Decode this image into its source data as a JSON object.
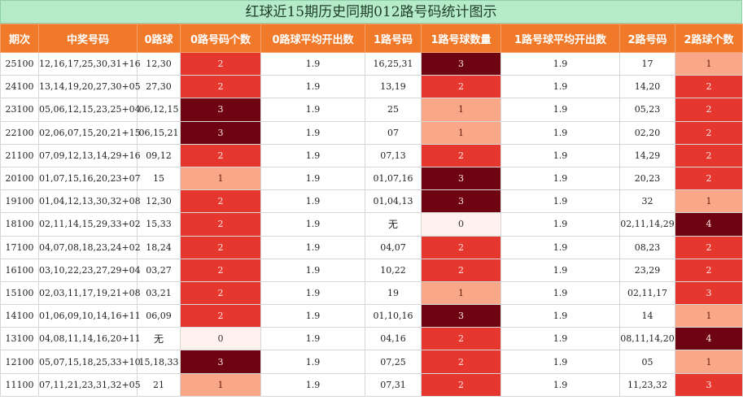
{
  "title": "红球近15期历史同期012路号码统计图示",
  "headers": [
    "期次",
    "中奖号码",
    "0路球",
    "0路号码个数",
    "0路球平均开出数",
    "1路号码",
    "1路号球数量",
    "1路号球平均开出数",
    "2路号码",
    "2路球个数"
  ],
  "rows": [
    {
      "issue": "25100",
      "numbers": "12,16,17,25,30,31+16",
      "r0": "12,30",
      "r0_count": "2",
      "r0_avg": "1.9",
      "r1": "16,25,31",
      "r1_count": "3",
      "r1_avg": "1.9",
      "r2": "17",
      "r2_count": "1"
    },
    {
      "issue": "24100",
      "numbers": "13,14,19,20,27,30+05",
      "r0": "27,30",
      "r0_count": "2",
      "r0_avg": "1.9",
      "r1": "13,19",
      "r1_count": "2",
      "r1_avg": "1.9",
      "r2": "14,20",
      "r2_count": "2"
    },
    {
      "issue": "23100",
      "numbers": "05,06,12,15,23,25+04",
      "r0": "06,12,15",
      "r0_count": "3",
      "r0_avg": "1.9",
      "r1": "25",
      "r1_count": "1",
      "r1_avg": "1.9",
      "r2": "05,23",
      "r2_count": "2"
    },
    {
      "issue": "22100",
      "numbers": "02,06,07,15,20,21+15",
      "r0": "06,15,21",
      "r0_count": "3",
      "r0_avg": "1.9",
      "r1": "07",
      "r1_count": "1",
      "r1_avg": "1.9",
      "r2": "02,20",
      "r2_count": "2"
    },
    {
      "issue": "21100",
      "numbers": "07,09,12,13,14,29+16",
      "r0": "09,12",
      "r0_count": "2",
      "r0_avg": "1.9",
      "r1": "07,13",
      "r1_count": "2",
      "r1_avg": "1.9",
      "r2": "14,29",
      "r2_count": "2"
    },
    {
      "issue": "20100",
      "numbers": "01,07,15,16,20,23+07",
      "r0": "15",
      "r0_count": "1",
      "r0_avg": "1.9",
      "r1": "01,07,16",
      "r1_count": "3",
      "r1_avg": "1.9",
      "r2": "20,23",
      "r2_count": "2"
    },
    {
      "issue": "19100",
      "numbers": "01,04,12,13,30,32+08",
      "r0": "12,30",
      "r0_count": "2",
      "r0_avg": "1.9",
      "r1": "01,04,13",
      "r1_count": "3",
      "r1_avg": "1.9",
      "r2": "32",
      "r2_count": "1"
    },
    {
      "issue": "18100",
      "numbers": "02,11,14,15,29,33+02",
      "r0": "15,33",
      "r0_count": "2",
      "r0_avg": "1.9",
      "r1": "无",
      "r1_count": "0",
      "r1_avg": "1.9",
      "r2": "02,11,14,29",
      "r2_count": "4"
    },
    {
      "issue": "17100",
      "numbers": "04,07,08,18,23,24+02",
      "r0": "18,24",
      "r0_count": "2",
      "r0_avg": "1.9",
      "r1": "04,07",
      "r1_count": "2",
      "r1_avg": "1.9",
      "r2": "08,23",
      "r2_count": "2"
    },
    {
      "issue": "16100",
      "numbers": "03,10,22,23,27,29+04",
      "r0": "03,27",
      "r0_count": "2",
      "r0_avg": "1.9",
      "r1": "10,22",
      "r1_count": "2",
      "r1_avg": "1.9",
      "r2": "23,29",
      "r2_count": "2"
    },
    {
      "issue": "15100",
      "numbers": "02,03,11,17,19,21+08",
      "r0": "03,21",
      "r0_count": "2",
      "r0_avg": "1.9",
      "r1": "19",
      "r1_count": "1",
      "r1_avg": "1.9",
      "r2": "02,11,17",
      "r2_count": "3"
    },
    {
      "issue": "14100",
      "numbers": "01,06,09,10,14,16+11",
      "r0": "06,09",
      "r0_count": "2",
      "r0_avg": "1.9",
      "r1": "01,10,16",
      "r1_count": "3",
      "r1_avg": "1.9",
      "r2": "14",
      "r2_count": "1"
    },
    {
      "issue": "13100",
      "numbers": "04,08,11,14,16,20+11",
      "r0": "无",
      "r0_count": "0",
      "r0_avg": "1.9",
      "r1": "04,16",
      "r1_count": "2",
      "r1_avg": "1.9",
      "r2": "08,11,14,20",
      "r2_count": "4"
    },
    {
      "issue": "12100",
      "numbers": "05,07,15,18,25,33+10",
      "r0": "15,18,33",
      "r0_count": "3",
      "r0_avg": "1.9",
      "r1": "07,25",
      "r1_count": "2",
      "r1_avg": "1.9",
      "r2": "05",
      "r2_count": "1"
    },
    {
      "issue": "11100",
      "numbers": "07,11,21,23,31,32+05",
      "r0": "21",
      "r0_count": "1",
      "r0_avg": "1.9",
      "r1": "07,31",
      "r1_count": "2",
      "r1_avg": "1.9",
      "r2": "11,23,32",
      "r2_count": "3"
    }
  ],
  "colors": {
    "count_0": "#fff2ee",
    "count_1": "#f9a789",
    "count_2": "#e5372e",
    "count_3": "#6e0312",
    "count_4": "#6e0312",
    "r2_count_3": "#e5372e",
    "header_bg": "#f07a2a",
    "title_bg": "#b5ebc9"
  }
}
